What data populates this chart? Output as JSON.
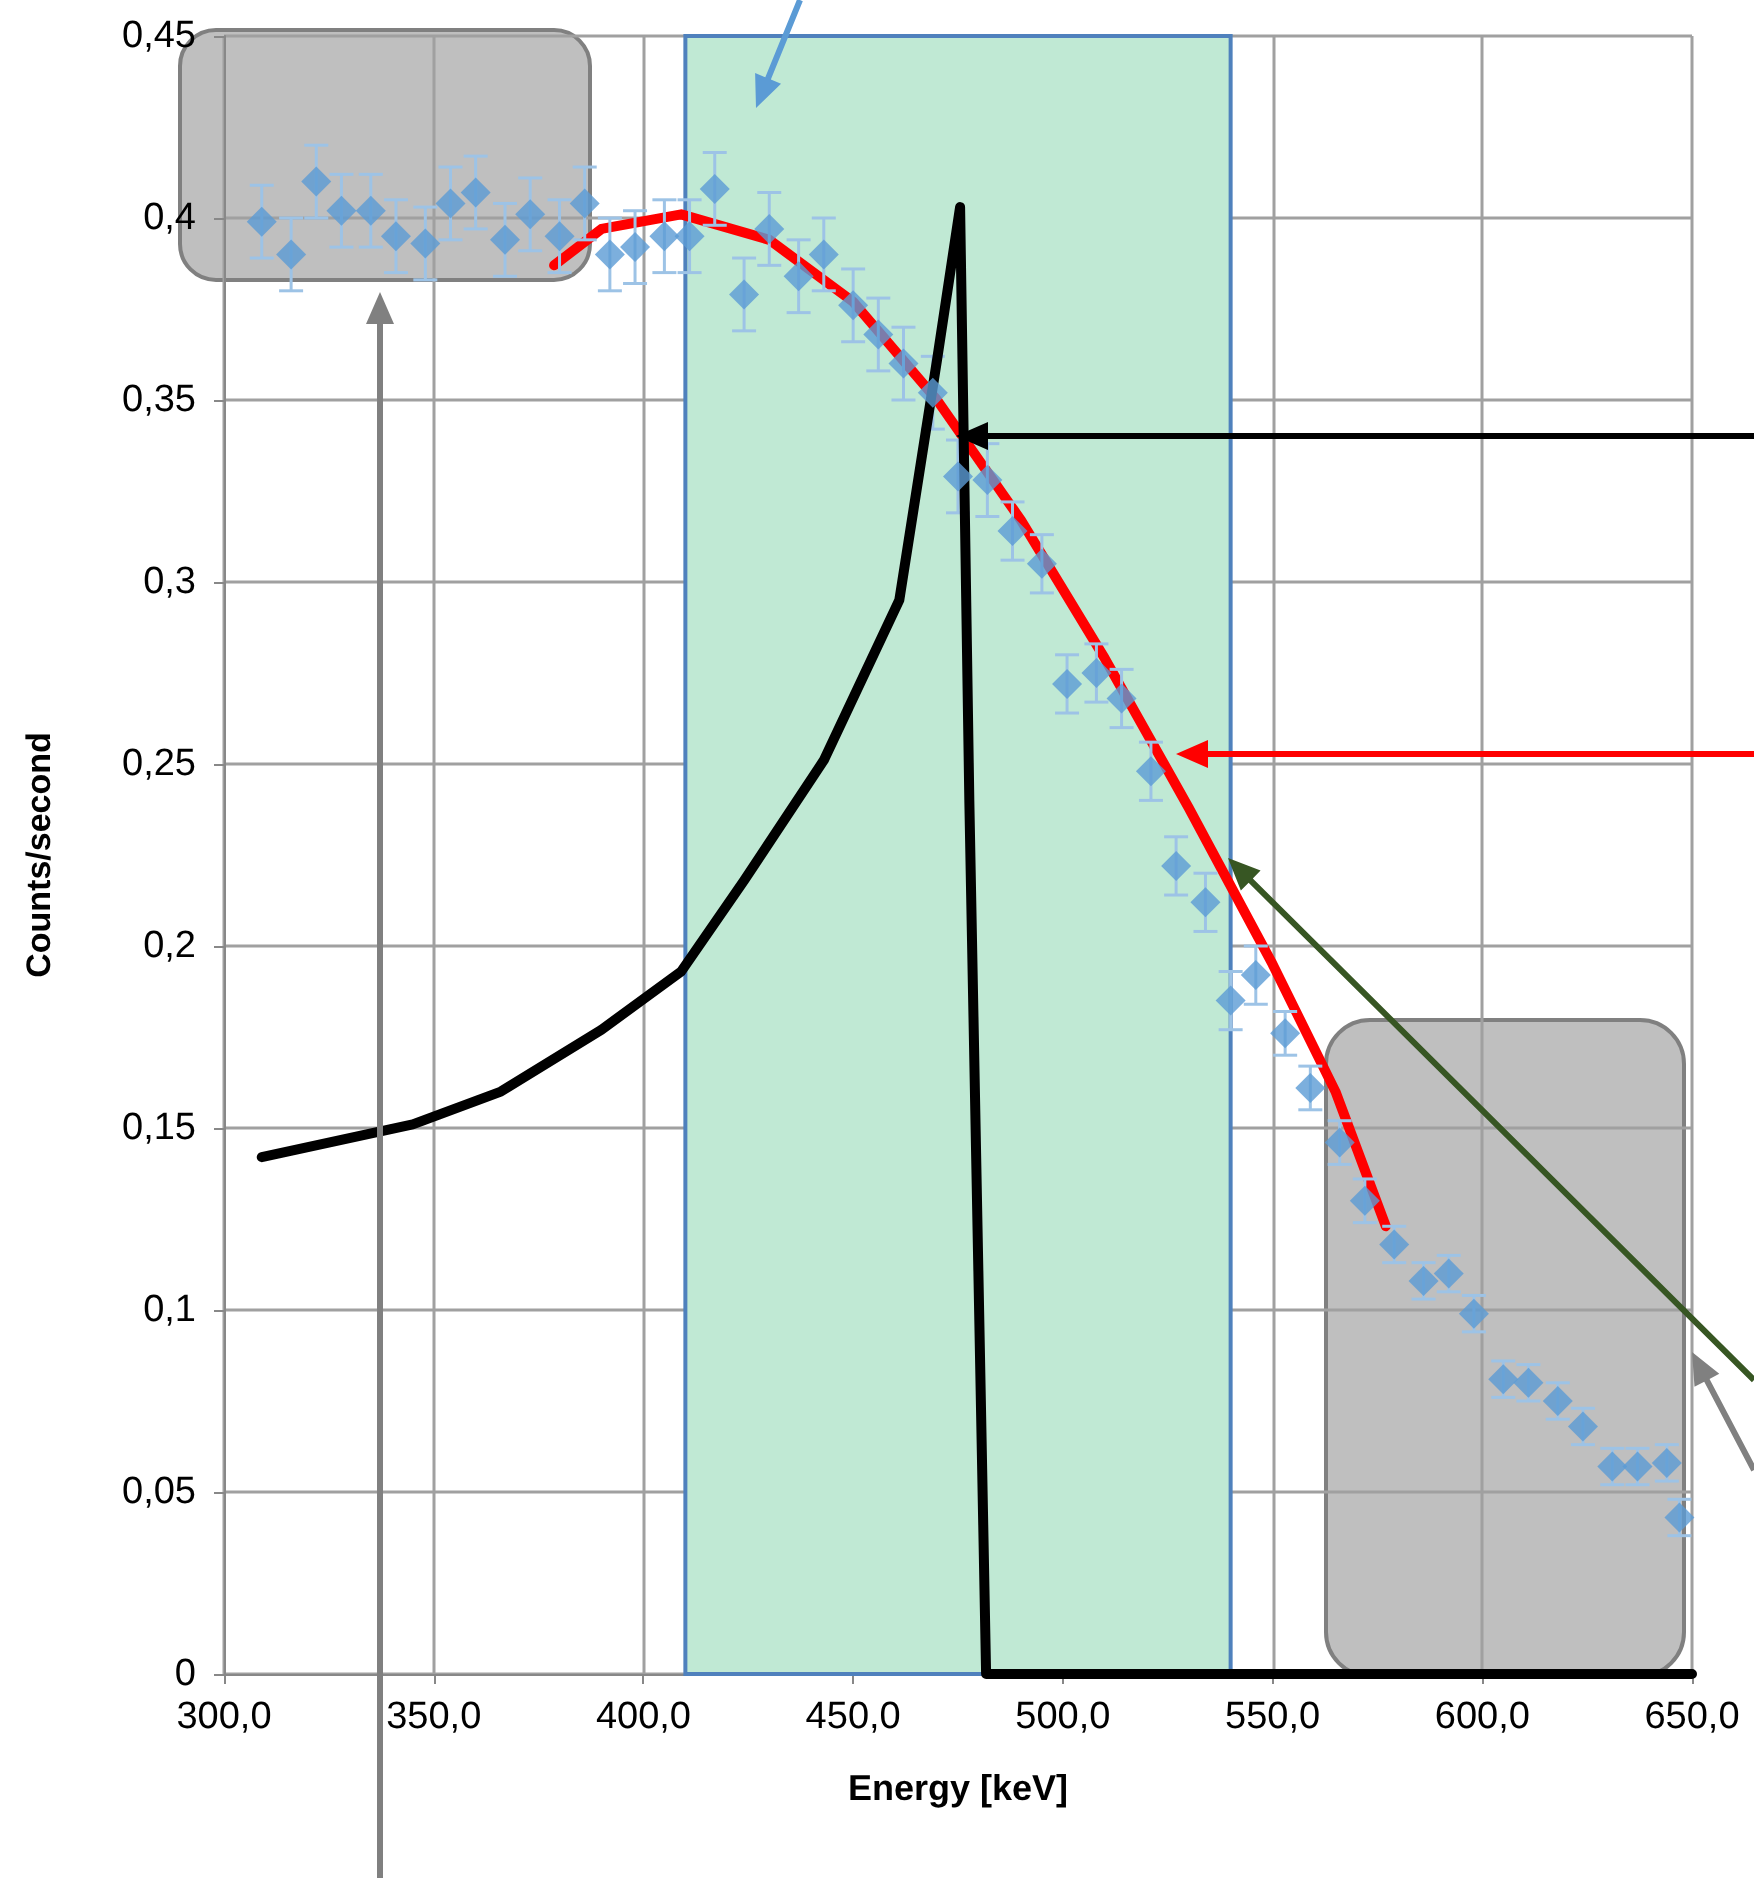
{
  "chart_data": {
    "type": "scatter",
    "xlabel": "Energy [keV]",
    "ylabel": "Counts/second",
    "xlim": [
      300,
      650
    ],
    "ylim": [
      0,
      0.45
    ],
    "xticks": [
      {
        "value": 300,
        "label": "300,0"
      },
      {
        "value": 350,
        "label": "350,0"
      },
      {
        "value": 400,
        "label": "400,0"
      },
      {
        "value": 450,
        "label": "450,0"
      },
      {
        "value": 500,
        "label": "500,0"
      },
      {
        "value": 550,
        "label": "550,0"
      },
      {
        "value": 600,
        "label": "600,0"
      },
      {
        "value": 650,
        "label": "650,0"
      }
    ],
    "yticks": [
      0,
      {
        "value": 0.05,
        "label": "0,05"
      },
      {
        "value": 0.1,
        "label": "0,1"
      },
      {
        "value": 0.15,
        "label": "0,15"
      },
      {
        "value": 0.2,
        "label": "0,2"
      },
      {
        "value": 0.25,
        "label": "0,25"
      },
      {
        "value": 0.3,
        "label": "0,3"
      },
      {
        "value": 0.35,
        "label": "0,35"
      },
      {
        "value": 0.4,
        "label": "0,4"
      },
      {
        "value": 0.45,
        "label": "0,45"
      }
    ],
    "grid": true,
    "bands": [
      {
        "axis": "x",
        "from": 410,
        "to": 540,
        "color": "#c0e9d4"
      }
    ],
    "series": [
      {
        "color": "#5b9bd5",
        "marker": "diamond",
        "x": [
          309,
          316,
          322,
          328,
          335,
          341,
          348,
          354,
          360,
          367,
          373,
          380,
          386,
          392,
          398,
          405,
          411,
          417,
          424,
          430,
          437,
          443,
          450,
          456,
          462,
          469,
          475,
          482,
          488,
          495,
          501,
          508,
          514,
          521,
          527,
          534,
          540,
          546,
          553,
          559,
          566,
          572,
          579,
          586,
          592,
          598,
          605,
          611,
          618,
          624,
          631,
          637,
          644,
          647
        ],
        "values": [
          0.399,
          0.39,
          0.41,
          0.402,
          0.402,
          0.395,
          0.393,
          0.404,
          0.407,
          0.394,
          0.401,
          0.395,
          0.404,
          0.39,
          0.392,
          0.395,
          0.395,
          0.408,
          0.379,
          0.397,
          0.384,
          0.39,
          0.376,
          0.368,
          0.36,
          0.352,
          0.329,
          0.328,
          0.314,
          0.305,
          0.272,
          0.275,
          0.268,
          0.248,
          0.222,
          0.212,
          0.185,
          0.192,
          0.176,
          0.161,
          0.146,
          0.13,
          0.118,
          0.108,
          0.11,
          0.099,
          0.081,
          0.08,
          0.075,
          0.068,
          0.057,
          0.057,
          0.058,
          0.043
        ],
        "errors": [
          0.01,
          0.01,
          0.01,
          0.01,
          0.01,
          0.01,
          0.01,
          0.01,
          0.01,
          0.01,
          0.01,
          0.01,
          0.01,
          0.01,
          0.01,
          0.01,
          0.01,
          0.01,
          0.01,
          0.01,
          0.01,
          0.01,
          0.01,
          0.01,
          0.01,
          0.01,
          0.01,
          0.01,
          0.008,
          0.008,
          0.008,
          0.008,
          0.008,
          0.008,
          0.008,
          0.008,
          0.008,
          0.008,
          0.006,
          0.006,
          0.006,
          0.006,
          0.005,
          0.005,
          0.005,
          0.005,
          0.005,
          0.005,
          0.005,
          0.005,
          0.005,
          0.005,
          0.005,
          0.005
        ]
      },
      {
        "type": "line",
        "color": "#ff0000",
        "marker": "none",
        "line_style": "solid",
        "x": [
          378.7,
          390,
          409,
          430,
          450,
          470,
          490,
          510,
          530,
          550,
          565,
          577
        ],
        "values": [
          0.387,
          0.397,
          0.401,
          0.394,
          0.377,
          0.35,
          0.317,
          0.279,
          0.238,
          0.195,
          0.16,
          0.123
        ]
      },
      {
        "type": "line",
        "color": "#000000",
        "marker": "none",
        "line_style": "solid",
        "x": [
          309,
          345,
          366,
          390,
          409,
          424,
          443,
          461,
          470,
          475.5,
          477.7,
          481.7,
          650
        ],
        "values": [
          0.142,
          0.151,
          0.16,
          0.177,
          0.193,
          0.218,
          0.251,
          0.295,
          0.361,
          0.403,
          0.24,
          0,
          0
        ]
      }
    ]
  }
}
